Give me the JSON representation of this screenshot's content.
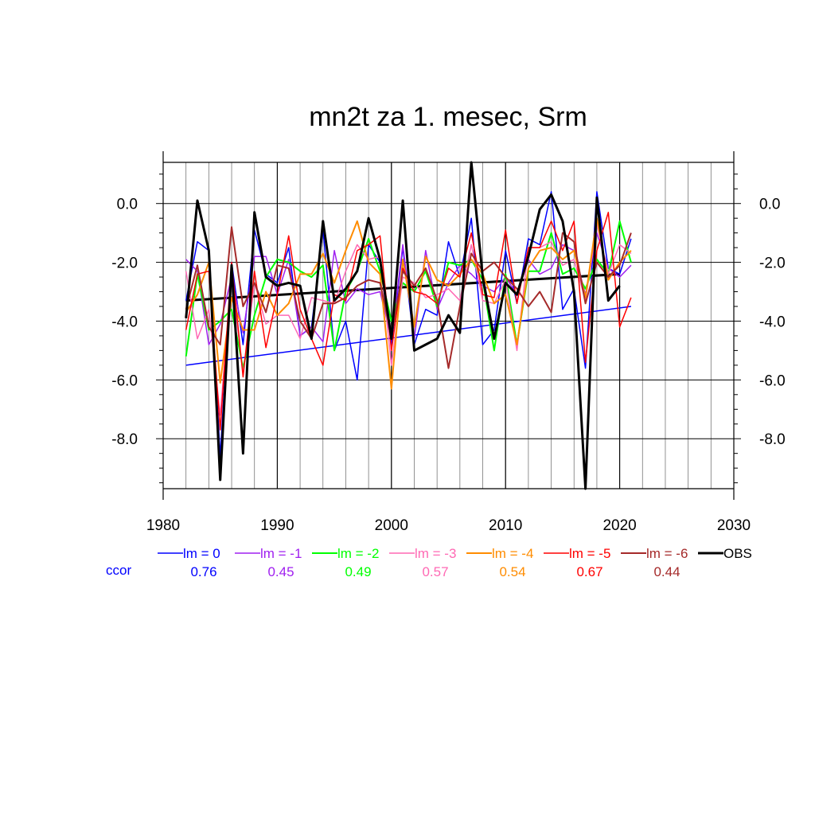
{
  "chart_data": {
    "type": "line",
    "title": "mn2t za 1. mesec, Srm",
    "xlabel": "",
    "ylabel": "",
    "xlim": [
      1980,
      2030
    ],
    "ylim": [
      -9.7,
      1.4
    ],
    "x_ticks": [
      "1980",
      "1990",
      "2000",
      "2010",
      "2020",
      "2030"
    ],
    "y_ticks": [
      "0.0",
      "-2.0",
      "-4.0",
      "-6.0",
      "-8.0"
    ],
    "y_tick_values": [
      0,
      -2,
      -4,
      -6,
      -8
    ],
    "grid": true,
    "x": [
      1982,
      1983,
      1984,
      1985,
      1986,
      1987,
      1988,
      1989,
      1990,
      1991,
      1992,
      1993,
      1994,
      1995,
      1996,
      1997,
      1998,
      1999,
      2000,
      2001,
      2002,
      2003,
      2004,
      2005,
      2006,
      2007,
      2008,
      2009,
      2010,
      2011,
      2012,
      2013,
      2014,
      2015,
      2016,
      2017,
      2018,
      2019,
      2020,
      2021
    ],
    "series": [
      {
        "name": "lm = 0",
        "color": "#0000ff",
        "width": 1.5,
        "values": [
          -3.3,
          -1.3,
          -1.6,
          -8.6,
          -2.0,
          -4.8,
          -0.9,
          -2.4,
          -2.7,
          -1.5,
          -4.5,
          -4.2,
          -0.9,
          -5.0,
          -4.0,
          -6.0,
          -1.4,
          -2.0,
          -4.8,
          -1.5,
          -4.8,
          -3.6,
          -3.8,
          -1.3,
          -2.5,
          -0.5,
          -4.8,
          -4.3,
          -1.6,
          -3.4,
          -1.2,
          -1.4,
          0.4,
          -3.6,
          -2.9,
          -5.6,
          0.4,
          -2.2,
          -2.4,
          -1.2
        ]
      },
      {
        "name": "lm = -1",
        "color": "#a020f0",
        "width": 1.5,
        "values": [
          -1.9,
          -2.3,
          -4.8,
          -4.1,
          -2.5,
          -4.4,
          -1.8,
          -1.8,
          -3.1,
          -1.9,
          -4.5,
          -4.2,
          -4.7,
          -1.6,
          -3.4,
          -2.9,
          -3.1,
          -3.0,
          -4.6,
          -1.4,
          -4.6,
          -1.6,
          -3.6,
          -2.7,
          -2.1,
          -2.4,
          -2.8,
          -3.0,
          -2.5,
          -3.1,
          -1.9,
          -2.4,
          -2.2,
          -1.4,
          -1.6,
          -3.1,
          -1.0,
          -2.2,
          -2.5,
          -2.1
        ]
      },
      {
        "name": "lm = -2",
        "color": "#00ff00",
        "width": 2,
        "values": [
          -5.2,
          -2.4,
          -4.3,
          -4.0,
          -3.6,
          -5.6,
          -3.8,
          -2.5,
          -1.9,
          -2.0,
          -2.3,
          -2.5,
          -2.1,
          -5.0,
          -3.0,
          -2.3,
          -1.2,
          -2.3,
          -4.0,
          -2.7,
          -3.0,
          -2.3,
          -3.5,
          -2.0,
          -2.1,
          -1.9,
          -2.6,
          -5.0,
          -2.4,
          -4.8,
          -2.3,
          -2.3,
          -1.0,
          -2.4,
          -2.2,
          -2.9,
          -1.9,
          -2.4,
          -0.6,
          -2.0
        ]
      },
      {
        "name": "lm = -3",
        "color": "#ff69b4",
        "width": 1.5,
        "values": [
          -2.3,
          -4.6,
          -3.6,
          -7.2,
          -2.5,
          -5.8,
          -2.7,
          -4.1,
          -3.8,
          -3.8,
          -4.6,
          -3.2,
          -3.3,
          -3.4,
          -2.3,
          -1.4,
          -1.9,
          -1.8,
          -5.5,
          -2.5,
          -2.7,
          -3.2,
          -3.1,
          -2.9,
          -3.3,
          -1.4,
          -3.3,
          -3.4,
          -2.6,
          -5.0,
          -1.5,
          -1.5,
          -1.3,
          -2.1,
          -1.9,
          -3.3,
          -0.7,
          -2.4,
          -1.4,
          -1.7
        ]
      },
      {
        "name": "lm = -4",
        "color": "#ff8c00",
        "width": 2,
        "values": [
          -3.7,
          -3.1,
          -2.0,
          -6.1,
          -3.2,
          -4.3,
          -4.3,
          -3.0,
          -3.8,
          -3.4,
          -2.4,
          -2.4,
          -1.7,
          -2.7,
          -1.6,
          -0.6,
          -2.0,
          -2.4,
          -6.3,
          -1.9,
          -4.2,
          -1.8,
          -2.6,
          -2.8,
          -2.4,
          -1.9,
          -2.4,
          -3.4,
          -3.1,
          -4.8,
          -2.2,
          -1.6,
          -1.5,
          -1.9,
          -1.6,
          -3.2,
          -0.5,
          -2.6,
          -2.0,
          -1.6
        ]
      },
      {
        "name": "lm = -5",
        "color": "#ff0000",
        "width": 1.5,
        "values": [
          -4.3,
          -2.4,
          -2.3,
          -7.7,
          -2.0,
          -5.9,
          -2.3,
          -4.9,
          -3.1,
          -1.1,
          -3.6,
          -4.6,
          -5.5,
          -3.1,
          -3.3,
          -1.6,
          -1.4,
          -1.1,
          -5.0,
          -2.2,
          -3.0,
          -3.1,
          -3.4,
          -2.2,
          -2.5,
          -1.0,
          -3.1,
          -3.2,
          -0.9,
          -3.4,
          -1.5,
          -1.5,
          -0.6,
          -1.6,
          -0.6,
          -5.4,
          -1.6,
          -0.3,
          -4.2,
          -3.2
        ]
      },
      {
        "name": "lm = -6",
        "color": "#a52a2a",
        "width": 2,
        "values": [
          -3.6,
          -2.1,
          -4.2,
          -4.8,
          -0.8,
          -3.5,
          -2.7,
          -3.7,
          -2.1,
          -2.2,
          -4.0,
          -4.6,
          -3.4,
          -3.4,
          -3.2,
          -2.8,
          -2.6,
          -2.7,
          -4.5,
          -2.3,
          -2.8,
          -2.2,
          -3.3,
          -5.6,
          -3.5,
          -1.7,
          -2.3,
          -2.0,
          -2.5,
          -2.9,
          -3.5,
          -3.0,
          -3.7,
          -1.0,
          -1.3,
          -3.4,
          -2.0,
          -2.5,
          -2.1,
          -1.0
        ]
      },
      {
        "name": "OBS",
        "color": "#000000",
        "width": 3,
        "values": [
          -3.9,
          0.1,
          -1.6,
          -9.4,
          -2.1,
          -8.5,
          -0.3,
          -2.5,
          -2.8,
          -2.7,
          -2.8,
          -4.6,
          -0.6,
          -3.3,
          -2.9,
          -2.3,
          -0.5,
          -1.9,
          -4.6,
          0.1,
          -5.0,
          -4.8,
          -4.6,
          -3.8,
          -4.4,
          1.4,
          -2.5,
          -4.6,
          -2.7,
          -3.1,
          -1.8,
          -0.2,
          0.3,
          -0.6,
          -3.0,
          -9.7,
          0.2,
          -3.3,
          -2.8,
          null
        ]
      }
    ],
    "trends": [
      {
        "color": "#0000ff",
        "width": 1.5,
        "x": [
          1982,
          2021
        ],
        "y": [
          -5.5,
          -3.5
        ]
      },
      {
        "color": "#000000",
        "width": 3,
        "x": [
          1982,
          2020
        ],
        "y": [
          -3.3,
          -2.4
        ]
      }
    ],
    "ccor_label": "ccor",
    "ccor_values": [
      "0.76",
      "0.45",
      "0.49",
      "0.57",
      "0.54",
      "0.67",
      "0.44"
    ]
  }
}
